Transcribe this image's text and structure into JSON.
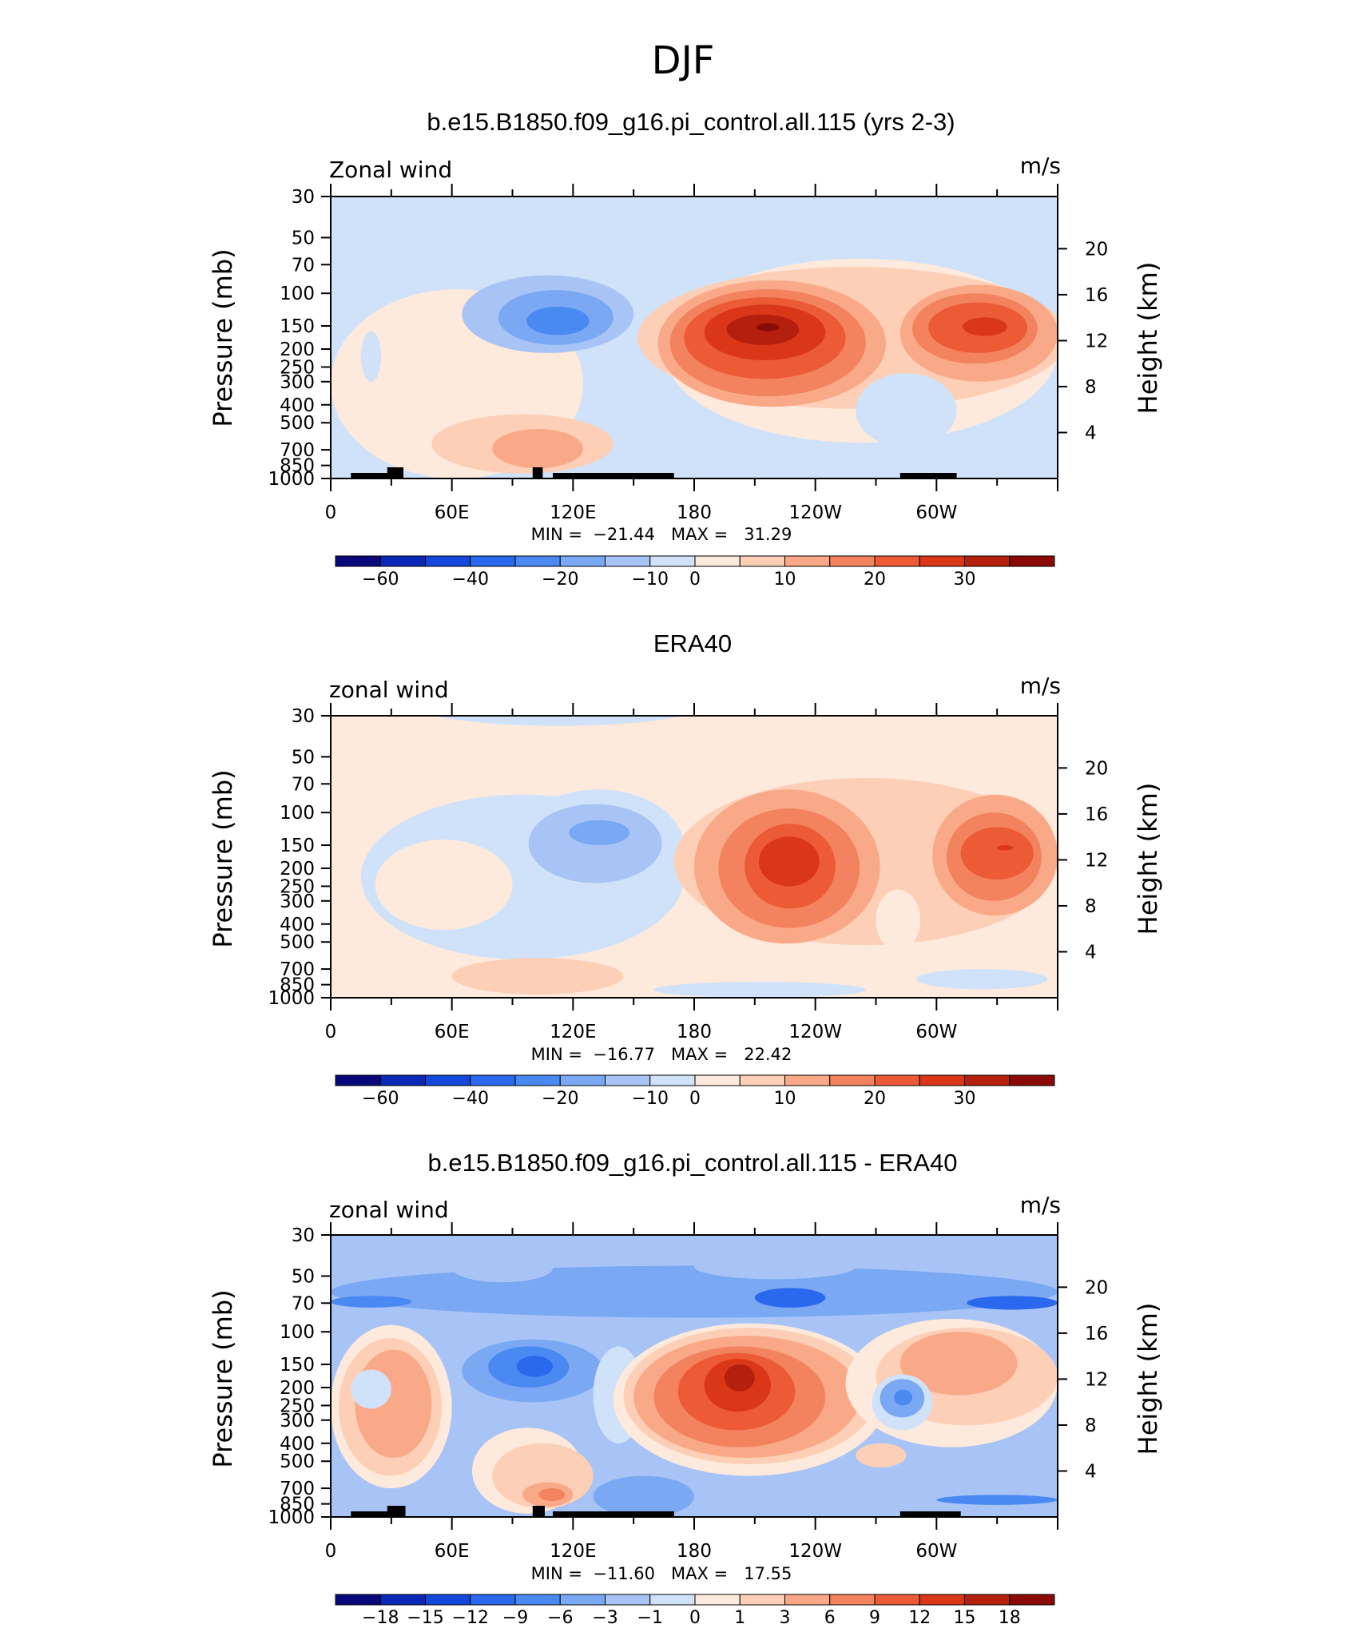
{
  "page": {
    "super_title": "DJF"
  },
  "colorbars": {
    "main": {
      "colors": [
        "#08087a",
        "#0a28b8",
        "#1448dc",
        "#2a68ee",
        "#4a88f2",
        "#7aa8f2",
        "#a8c4f6",
        "#cfe2fa",
        "#feeadc",
        "#fccfb6",
        "#f9a988",
        "#f3825e",
        "#ec5a36",
        "#da3718",
        "#b51f0e",
        "#8a0a06"
      ],
      "labels": [
        "-60",
        "-40",
        "-20",
        "-10",
        "0",
        "10",
        "20",
        "30"
      ],
      "label_boundaries": [
        1,
        3,
        5,
        7,
        8,
        10,
        12,
        14
      ]
    },
    "diff": {
      "colors": [
        "#08087a",
        "#0a28b8",
        "#1448dc",
        "#2a68ee",
        "#4a88f2",
        "#7aa8f2",
        "#a8c4f6",
        "#cfe2fa",
        "#feeadc",
        "#fccfb6",
        "#f9a988",
        "#f3825e",
        "#ec5a36",
        "#da3718",
        "#b51f0e",
        "#8a0a06"
      ],
      "labels": [
        "-18",
        "-15",
        "-12",
        "-9",
        "-6",
        "-3",
        "-1",
        "0",
        "1",
        "3",
        "6",
        "9",
        "12",
        "15",
        "18"
      ],
      "label_boundaries": [
        1,
        2,
        3,
        4,
        5,
        6,
        7,
        8,
        9,
        10,
        11,
        12,
        13,
        14,
        15
      ]
    }
  },
  "chart_data": [
    {
      "type": "contour",
      "title": "b.e15.B1850.f09_g16.pi_control.all.115 (yrs 2-3)",
      "left_label": "Zonal wind",
      "units": "m/s",
      "ylabel": "Pressure (mb)",
      "ylabel_right": "Height (km)",
      "pressure_ticks": [
        30,
        50,
        70,
        100,
        150,
        200,
        250,
        300,
        400,
        500,
        700,
        850,
        1000
      ],
      "height_ticks": [
        4,
        8,
        12,
        16,
        20
      ],
      "lon_labels": [
        "0",
        "60E",
        "120E",
        "180",
        "120W",
        "60W"
      ],
      "stats": {
        "min": "-21.44",
        "max": "31.29"
      },
      "stats_text": "MIN =  −21.44   MAX =   31.29",
      "colorbar": "main",
      "background_level": 7,
      "features": [
        {
          "level": 8,
          "lon": [
            0,
            125
          ],
          "p": [
            95,
            1000
          ]
        },
        {
          "level": 8,
          "lon": [
            165,
            360
          ],
          "p": [
            65,
            640
          ]
        },
        {
          "level": 7,
          "lon": [
            15,
            25
          ],
          "p": [
            160,
            300
          ]
        },
        {
          "level": 9,
          "lon": [
            50,
            140
          ],
          "p": [
            450,
            940
          ]
        },
        {
          "level": 10,
          "lon": [
            80,
            125
          ],
          "p": [
            540,
            880
          ]
        },
        {
          "level": 6,
          "lon": [
            65,
            150
          ],
          "p": [
            80,
            210
          ]
        },
        {
          "level": 5,
          "lon": [
            83,
            140
          ],
          "p": [
            96,
            190
          ]
        },
        {
          "level": 4,
          "lon": [
            97,
            128
          ],
          "p": [
            118,
            168
          ]
        },
        {
          "level": 9,
          "lon": [
            152,
            365
          ],
          "p": [
            72,
            420
          ]
        },
        {
          "level": 10,
          "lon": [
            162,
            275
          ],
          "p": [
            85,
            410
          ]
        },
        {
          "level": 11,
          "lon": [
            168,
            265
          ],
          "p": [
            95,
            360
          ]
        },
        {
          "level": 12,
          "lon": [
            175,
            255
          ],
          "p": [
            105,
            290
          ]
        },
        {
          "level": 13,
          "lon": [
            185,
            245
          ],
          "p": [
            115,
            230
          ]
        },
        {
          "level": 14,
          "lon": [
            196,
            232
          ],
          "p": [
            130,
            190
          ]
        },
        {
          "level": 15,
          "lon": [
            211,
            222
          ],
          "p": [
            145,
            160
          ]
        },
        {
          "level": 10,
          "lon": [
            282,
            360
          ],
          "p": [
            90,
            300
          ]
        },
        {
          "level": 11,
          "lon": [
            288,
            350
          ],
          "p": [
            100,
            240
          ]
        },
        {
          "level": 12,
          "lon": [
            296,
            345
          ],
          "p": [
            112,
            210
          ]
        },
        {
          "level": 13,
          "lon": [
            313,
            335
          ],
          "p": [
            135,
            170
          ]
        },
        {
          "level": 7,
          "lon": [
            260,
            310
          ],
          "p": [
            270,
            680
          ]
        },
        {
          "level": 6,
          "lon": [
            190,
            240
          ],
          "p": [
            770,
            880
          ]
        },
        {
          "level": 7,
          "lon": [
            185,
            280
          ],
          "p": [
            700,
            930
          ]
        }
      ],
      "topography": [
        [
          10,
          30
        ],
        [
          28,
          36
        ],
        [
          100,
          105
        ],
        [
          110,
          170
        ],
        [
          282,
          310
        ]
      ]
    },
    {
      "type": "contour",
      "title": "ERA40",
      "left_label": "zonal wind",
      "units": "m/s",
      "ylabel": "Pressure (mb)",
      "ylabel_right": "Height (km)",
      "pressure_ticks": [
        30,
        50,
        70,
        100,
        150,
        200,
        250,
        300,
        400,
        500,
        700,
        850,
        1000
      ],
      "height_ticks": [
        4,
        8,
        12,
        16,
        20
      ],
      "lon_labels": [
        "0",
        "60E",
        "120E",
        "180",
        "120W",
        "60W"
      ],
      "stats": {
        "min": "-16.77",
        "max": "22.42"
      },
      "stats_text": "MIN =  −16.77   MAX =   22.42",
      "colorbar": "main",
      "background_level": 8,
      "features": [
        {
          "level": 7,
          "lon": [
            40,
            185
          ],
          "p": [
            20,
            34
          ]
        },
        {
          "level": 7,
          "lon": [
            15,
            175
          ],
          "p": [
            80,
            620
          ]
        },
        {
          "level": 8,
          "lon": [
            22,
            90
          ],
          "p": [
            140,
            430
          ]
        },
        {
          "level": 7,
          "lon": [
            90,
            175
          ],
          "p": [
            75,
            320
          ]
        },
        {
          "level": 6,
          "lon": [
            98,
            164
          ],
          "p": [
            90,
            240
          ]
        },
        {
          "level": 5,
          "lon": [
            118,
            148
          ],
          "p": [
            110,
            150
          ]
        },
        {
          "level": 9,
          "lon": [
            170,
            360
          ],
          "p": [
            65,
            520
          ]
        },
        {
          "level": 8,
          "lon": [
            270,
            292
          ],
          "p": [
            260,
            560
          ]
        },
        {
          "level": 10,
          "lon": [
            180,
            272
          ],
          "p": [
            75,
            510
          ]
        },
        {
          "level": 11,
          "lon": [
            192,
            262
          ],
          "p": [
            95,
            420
          ]
        },
        {
          "level": 12,
          "lon": [
            205,
            250
          ],
          "p": [
            115,
            330
          ]
        },
        {
          "level": 13,
          "lon": [
            212,
            242
          ],
          "p": [
            135,
            250
          ]
        },
        {
          "level": 10,
          "lon": [
            298,
            360
          ],
          "p": [
            80,
            360
          ]
        },
        {
          "level": 11,
          "lon": [
            305,
            352
          ],
          "p": [
            100,
            300
          ]
        },
        {
          "level": 12,
          "lon": [
            312,
            348
          ],
          "p": [
            120,
            230
          ]
        },
        {
          "level": 13,
          "lon": [
            330,
            338
          ],
          "p": [
            150,
            160
          ]
        },
        {
          "level": 9,
          "lon": [
            60,
            145
          ],
          "p": [
            610,
            960
          ]
        },
        {
          "level": 7,
          "lon": [
            160,
            265
          ],
          "p": [
            820,
            1000
          ]
        },
        {
          "level": 7,
          "lon": [
            290,
            355
          ],
          "p": [
            700,
            900
          ]
        }
      ],
      "topography": []
    },
    {
      "type": "contour",
      "title": "b.e15.B1850.f09_g16.pi_control.all.115 - ERA40",
      "left_label": "zonal wind",
      "units": "m/s",
      "ylabel": "Pressure (mb)",
      "ylabel_right": "Height (km)",
      "pressure_ticks": [
        30,
        50,
        70,
        100,
        150,
        200,
        250,
        300,
        400,
        500,
        700,
        850,
        1000
      ],
      "height_ticks": [
        4,
        8,
        12,
        16,
        20
      ],
      "lon_labels": [
        "0",
        "60E",
        "120E",
        "180",
        "120W",
        "60W"
      ],
      "stats": {
        "min": "-11.60",
        "max": "17.55"
      },
      "stats_text": "MIN =  −11.60   MAX =   17.55",
      "colorbar": "diff",
      "background_level": 6,
      "features": [
        {
          "level": 5,
          "lon": [
            0,
            360
          ],
          "p": [
            44,
            84
          ]
        },
        {
          "level": 6,
          "lon": [
            60,
            110
          ],
          "p": [
            38,
            54
          ]
        },
        {
          "level": 6,
          "lon": [
            180,
            260
          ],
          "p": [
            38,
            52
          ]
        },
        {
          "level": 4,
          "lon": [
            0,
            40
          ],
          "p": [
            64,
            74
          ]
        },
        {
          "level": 3,
          "lon": [
            210,
            245
          ],
          "p": [
            58,
            74
          ]
        },
        {
          "level": 3,
          "lon": [
            315,
            360
          ],
          "p": [
            64,
            76
          ]
        },
        {
          "level": 6,
          "lon": [
            0,
            360
          ],
          "p": [
            84,
            96
          ]
        },
        {
          "level": 8,
          "lon": [
            0,
            60
          ],
          "p": [
            92,
            700
          ]
        },
        {
          "level": 9,
          "lon": [
            4,
            55
          ],
          "p": [
            108,
            600
          ]
        },
        {
          "level": 10,
          "lon": [
            12,
            50
          ],
          "p": [
            125,
            480
          ]
        },
        {
          "level": 7,
          "lon": [
            10,
            30
          ],
          "p": [
            160,
            260
          ]
        },
        {
          "level": 8,
          "lon": [
            70,
            125
          ],
          "p": [
            330,
            960
          ]
        },
        {
          "level": 9,
          "lon": [
            80,
            130
          ],
          "p": [
            400,
            900
          ]
        },
        {
          "level": 10,
          "lon": [
            95,
            120
          ],
          "p": [
            650,
            880
          ]
        },
        {
          "level": 11,
          "lon": [
            103,
            116
          ],
          "p": [
            700,
            820
          ]
        },
        {
          "level": 5,
          "lon": [
            65,
            135
          ],
          "p": [
            110,
            240
          ]
        },
        {
          "level": 4,
          "lon": [
            78,
            118
          ],
          "p": [
            120,
            200
          ]
        },
        {
          "level": 3,
          "lon": [
            92,
            110
          ],
          "p": [
            135,
            175
          ]
        },
        {
          "level": 7,
          "lon": [
            130,
            155
          ],
          "p": [
            120,
            400
          ]
        },
        {
          "level": 8,
          "lon": [
            140,
            275
          ],
          "p": [
            90,
            600
          ]
        },
        {
          "level": 9,
          "lon": [
            145,
            270
          ],
          "p": [
            95,
            520
          ]
        },
        {
          "level": 10,
          "lon": [
            150,
            262
          ],
          "p": [
            105,
            480
          ]
        },
        {
          "level": 11,
          "lon": [
            160,
            245
          ],
          "p": [
            120,
            420
          ]
        },
        {
          "level": 12,
          "lon": [
            172,
            230
          ],
          "p": [
            130,
            340
          ]
        },
        {
          "level": 13,
          "lon": [
            185,
            218
          ],
          "p": [
            140,
            270
          ]
        },
        {
          "level": 14,
          "lon": [
            195,
            210
          ],
          "p": [
            150,
            210
          ]
        },
        {
          "level": 8,
          "lon": [
            255,
            360
          ],
          "p": [
            85,
            420
          ]
        },
        {
          "level": 9,
          "lon": [
            270,
            360
          ],
          "p": [
            95,
            320
          ]
        },
        {
          "level": 10,
          "lon": [
            282,
            340
          ],
          "p": [
            100,
            220
          ]
        },
        {
          "level": 7,
          "lon": [
            268,
            298
          ],
          "p": [
            170,
            340
          ]
        },
        {
          "level": 5,
          "lon": [
            272,
            294
          ],
          "p": [
            180,
            290
          ]
        },
        {
          "level": 4,
          "lon": [
            279,
            288
          ],
          "p": [
            205,
            250
          ]
        },
        {
          "level": 9,
          "lon": [
            260,
            285
          ],
          "p": [
            400,
            540
          ]
        },
        {
          "level": 5,
          "lon": [
            130,
            180
          ],
          "p": [
            600,
            1000
          ]
        },
        {
          "level": 4,
          "lon": [
            300,
            360
          ],
          "p": [
            760,
            860
          ]
        }
      ],
      "topography": [
        [
          10,
          30
        ],
        [
          28,
          37
        ],
        [
          100,
          106
        ],
        [
          110,
          170
        ],
        [
          282,
          312
        ]
      ]
    }
  ]
}
